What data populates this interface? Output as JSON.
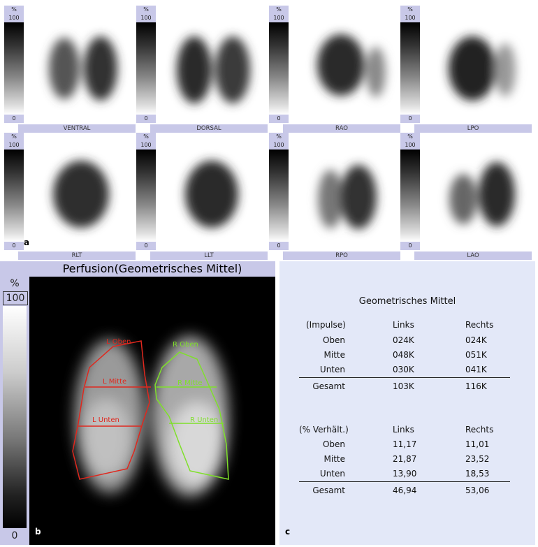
{
  "scale": {
    "percent": "%",
    "max": "100",
    "min": "0"
  },
  "views": [
    {
      "label": "VENTRAL"
    },
    {
      "label": "DORSAL"
    },
    {
      "label": "RAO"
    },
    {
      "label": "LPO"
    },
    {
      "label": "RLT"
    },
    {
      "label": "LLT"
    },
    {
      "label": "RPO"
    },
    {
      "label": "LAO"
    }
  ],
  "panel_letters": {
    "a": "a",
    "b": "b",
    "c": "c"
  },
  "perfusion": {
    "title": "Perfusion(Geometrisches Mittel)",
    "regions": {
      "left_upper": "L Oben",
      "left_middle": "L Mitte",
      "left_lower": "L Unten",
      "right_upper": "R Oben",
      "right_middle": "R Mitte",
      "right_lower": "R Unten"
    },
    "colors": {
      "left_roi": "#e0281e",
      "right_roi": "#7fe02a"
    }
  },
  "table": {
    "title": "Geometrisches Mittel",
    "impulse": {
      "header": [
        "(Impulse)",
        "Links",
        "Rechts"
      ],
      "rows": [
        {
          "label": "Oben",
          "links": "024K",
          "rechts": "024K"
        },
        {
          "label": "Mitte",
          "links": "048K",
          "rechts": "051K"
        },
        {
          "label": "Unten",
          "links": "030K",
          "rechts": "041K"
        }
      ],
      "total": {
        "label": "Gesamt",
        "links": "103K",
        "rechts": "116K"
      }
    },
    "ratio": {
      "header": [
        "(% Verhält.)",
        "Links",
        "Rechts"
      ],
      "rows": [
        {
          "label": "Oben",
          "links": "11,17",
          "rechts": "11,01"
        },
        {
          "label": "Mitte",
          "links": "21,87",
          "rechts": "23,52"
        },
        {
          "label": "Unten",
          "links": "13,90",
          "rechts": "18,53"
        }
      ],
      "total": {
        "label": "Gesamt",
        "links": "46,94",
        "rechts": "53,06"
      }
    }
  }
}
